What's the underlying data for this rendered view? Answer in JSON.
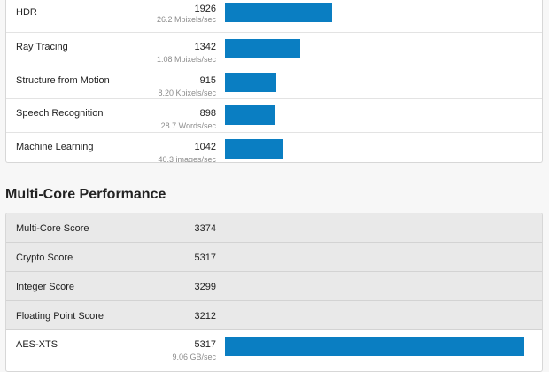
{
  "colors": {
    "bar": "#0a7ec2",
    "score_row_bg": "#e9e9e9"
  },
  "single_core_benchmarks": [
    {
      "name": "HDR",
      "score": "1926",
      "detail": "26.2 Mpixels/sec",
      "bar_fraction": 0.359
    },
    {
      "name": "Ray Tracing",
      "score": "1342",
      "detail": "1.08 Mpixels/sec",
      "bar_fraction": 0.25
    },
    {
      "name": "Structure from Motion",
      "score": "915",
      "detail": "8.20 Kpixels/sec",
      "bar_fraction": 0.171
    },
    {
      "name": "Speech Recognition",
      "score": "898",
      "detail": "28.7 Words/sec",
      "bar_fraction": 0.168
    },
    {
      "name": "Machine Learning",
      "score": "1042",
      "detail": "40.3 images/sec",
      "bar_fraction": 0.195
    }
  ],
  "multi_core": {
    "title": "Multi-Core Performance",
    "scores": [
      {
        "name": "Multi-Core Score",
        "score": "3374"
      },
      {
        "name": "Crypto Score",
        "score": "5317"
      },
      {
        "name": "Integer Score",
        "score": "3299"
      },
      {
        "name": "Floating Point Score",
        "score": "3212"
      }
    ],
    "benchmarks": [
      {
        "name": "AES-XTS",
        "score": "5317",
        "detail": "9.06 GB/sec",
        "bar_fraction": 1.0
      }
    ]
  }
}
